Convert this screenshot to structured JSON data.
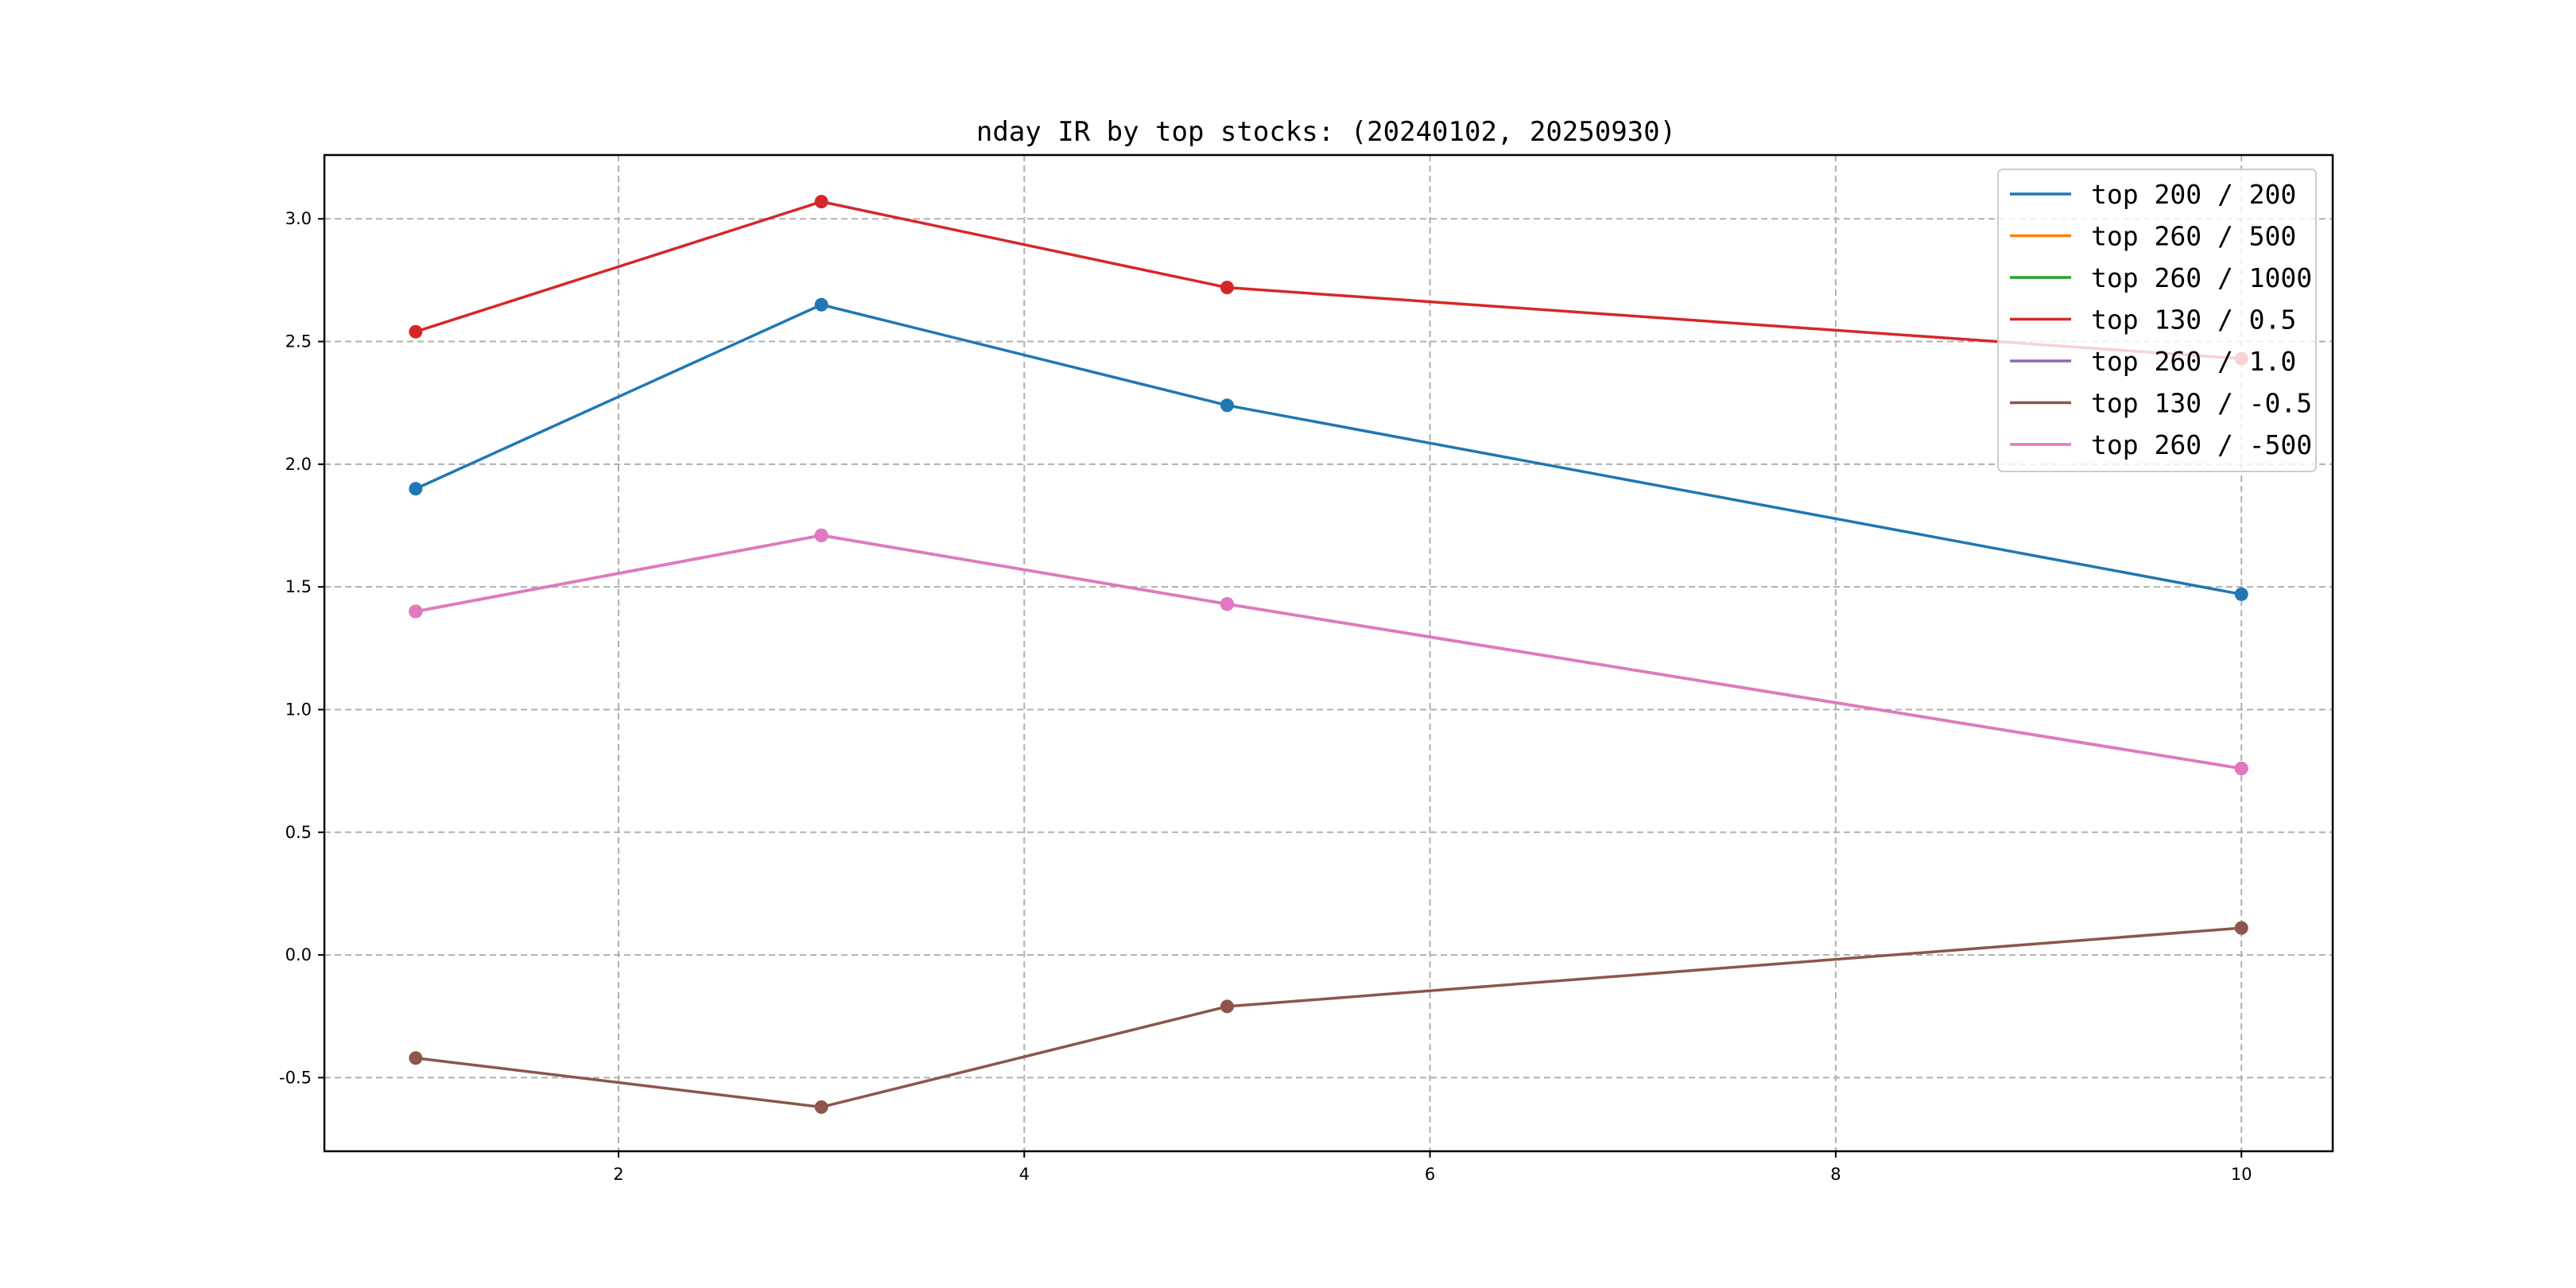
{
  "chart_data": {
    "type": "line",
    "title": "nday IR by top stocks: (20240102, 20250930)",
    "xlabel": "",
    "ylabel": "",
    "x": [
      1,
      3,
      5,
      10
    ],
    "xlim": [
      0.55,
      10.45
    ],
    "ylim": [
      -0.8,
      3.26
    ],
    "xticks": [
      2,
      4,
      6,
      8,
      10
    ],
    "xtick_labels": [
      "2",
      "4",
      "6",
      "8",
      "10"
    ],
    "yticks": [
      -0.5,
      0.0,
      0.5,
      1.0,
      1.5,
      2.0,
      2.5,
      3.0
    ],
    "ytick_labels": [
      "-0.5",
      "0.0",
      "0.5",
      "1.0",
      "1.5",
      "2.0",
      "2.5",
      "3.0"
    ],
    "grid": true,
    "legend_position": "top-right",
    "series": [
      {
        "name": "top 200 / 200",
        "color": "#1f77b4",
        "values": [
          1.9,
          2.65,
          2.24,
          1.47
        ]
      },
      {
        "name": "top 260 / 500",
        "color": "#ff7f0e",
        "values": [
          1.4,
          1.71,
          1.43,
          0.76
        ]
      },
      {
        "name": "top 260 / 1000",
        "color": "#2ca02c",
        "values": [
          1.4,
          1.71,
          1.43,
          0.76
        ]
      },
      {
        "name": "top 130 / 0.5",
        "color": "#d62728",
        "values": [
          2.54,
          3.07,
          2.72,
          2.43
        ]
      },
      {
        "name": "top 260 / 1.0",
        "color": "#9467bd",
        "values": [
          1.4,
          1.71,
          1.43,
          0.76
        ]
      },
      {
        "name": "top 130 / -0.5",
        "color": "#8c564b",
        "values": [
          -0.42,
          -0.62,
          -0.21,
          0.11
        ]
      },
      {
        "name": "top 260 / -500",
        "color": "#e377c2",
        "values": [
          1.4,
          1.71,
          1.43,
          0.76
        ]
      }
    ]
  }
}
